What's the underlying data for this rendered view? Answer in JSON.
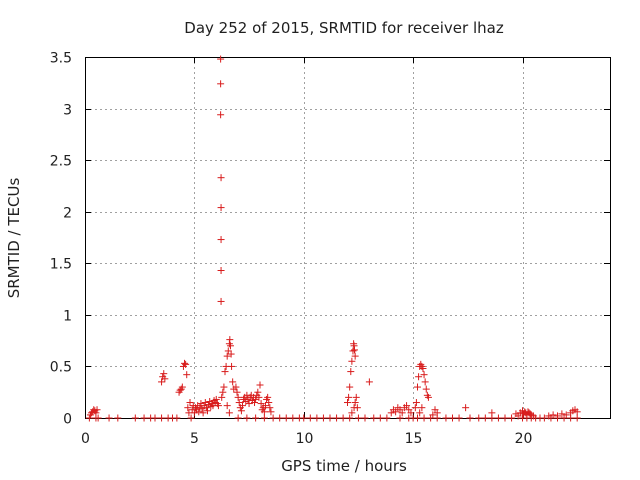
{
  "chart_data": {
    "type": "scatter",
    "title": "Day 252 of 2015, SRMTID for receiver lhaz",
    "xlabel": "GPS time / hours",
    "ylabel": "SRMTID / TECUs",
    "xlim": [
      0,
      24
    ],
    "ylim": [
      0,
      3.5
    ],
    "xticks": [
      0,
      5,
      10,
      15,
      20
    ],
    "xtick_labels": [
      "0",
      "5",
      "10",
      "15",
      "20"
    ],
    "yticks": [
      0,
      0.5,
      1,
      1.5,
      2,
      2.5,
      3,
      3.5
    ],
    "ytick_labels": [
      "0",
      "0.5",
      "1",
      "1.5",
      "2",
      "2.5",
      "3",
      "3.5"
    ],
    "grid": true,
    "marker": "+",
    "color": "#d81c1c",
    "series": [
      {
        "name": "lhaz",
        "points": [
          [
            0.2,
            0.0
          ],
          [
            0.25,
            0.03
          ],
          [
            0.3,
            0.05
          ],
          [
            0.35,
            0.06
          ],
          [
            0.4,
            0.08
          ],
          [
            0.45,
            0.07
          ],
          [
            0.5,
            0.05
          ],
          [
            0.55,
            0.08
          ],
          [
            0.6,
            0.0
          ],
          [
            0.5,
            0.0
          ],
          [
            1.1,
            0.0
          ],
          [
            1.5,
            0.0
          ],
          [
            2.3,
            0.0
          ],
          [
            2.7,
            0.0
          ],
          [
            3.0,
            0.0
          ],
          [
            3.2,
            0.0
          ],
          [
            3.5,
            0.35
          ],
          [
            3.55,
            0.4
          ],
          [
            3.6,
            0.43
          ],
          [
            3.65,
            0.38
          ],
          [
            3.5,
            0.0
          ],
          [
            3.8,
            0.0
          ],
          [
            4.0,
            0.0
          ],
          [
            4.2,
            0.0
          ],
          [
            4.3,
            0.25
          ],
          [
            4.35,
            0.27
          ],
          [
            4.4,
            0.28
          ],
          [
            4.45,
            0.3
          ],
          [
            4.5,
            0.5
          ],
          [
            4.55,
            0.53
          ],
          [
            4.6,
            0.52
          ],
          [
            4.65,
            0.42
          ],
          [
            4.7,
            0.1
          ],
          [
            4.75,
            0.05
          ],
          [
            4.8,
            0.15
          ],
          [
            4.85,
            0.0
          ],
          [
            4.9,
            0.08
          ],
          [
            4.95,
            0.12
          ],
          [
            5.0,
            0.05
          ],
          [
            5.05,
            0.1
          ],
          [
            5.1,
            0.08
          ],
          [
            5.15,
            0.12
          ],
          [
            5.2,
            0.06
          ],
          [
            5.25,
            0.1
          ],
          [
            5.3,
            0.14
          ],
          [
            5.35,
            0.09
          ],
          [
            5.4,
            0.05
          ],
          [
            5.45,
            0.12
          ],
          [
            5.5,
            0.15
          ],
          [
            5.55,
            0.1
          ],
          [
            5.6,
            0.07
          ],
          [
            5.65,
            0.13
          ],
          [
            5.7,
            0.16
          ],
          [
            5.75,
            0.11
          ],
          [
            5.8,
            0.14
          ],
          [
            5.85,
            0.12
          ],
          [
            5.9,
            0.17
          ],
          [
            5.95,
            0.15
          ],
          [
            6.0,
            0.18
          ],
          [
            6.05,
            0.14
          ],
          [
            6.1,
            0.12
          ],
          [
            6.2,
            3.48
          ],
          [
            6.2,
            3.24
          ],
          [
            6.2,
            2.94
          ],
          [
            6.22,
            2.33
          ],
          [
            6.22,
            2.04
          ],
          [
            6.22,
            1.73
          ],
          [
            6.22,
            1.43
          ],
          [
            6.22,
            1.13
          ],
          [
            6.25,
            0.2
          ],
          [
            6.3,
            0.25
          ],
          [
            6.35,
            0.3
          ],
          [
            6.4,
            0.45
          ],
          [
            6.45,
            0.5
          ],
          [
            6.5,
            0.6
          ],
          [
            6.55,
            0.65
          ],
          [
            6.6,
            0.72
          ],
          [
            6.62,
            0.76
          ],
          [
            6.65,
            0.7
          ],
          [
            6.68,
            0.62
          ],
          [
            6.7,
            0.5
          ],
          [
            6.75,
            0.35
          ],
          [
            6.8,
            0.28
          ],
          [
            6.5,
            0.12
          ],
          [
            6.6,
            0.05
          ],
          [
            6.9,
            0.3
          ],
          [
            6.95,
            0.25
          ],
          [
            7.0,
            0.2
          ],
          [
            7.05,
            0.15
          ],
          [
            7.1,
            0.1
          ],
          [
            7.15,
            0.07
          ],
          [
            7.2,
            0.12
          ],
          [
            7.25,
            0.18
          ],
          [
            7.3,
            0.2
          ],
          [
            7.35,
            0.16
          ],
          [
            7.4,
            0.22
          ],
          [
            7.45,
            0.18
          ],
          [
            7.5,
            0.14
          ],
          [
            7.55,
            0.2
          ],
          [
            7.6,
            0.22
          ],
          [
            7.65,
            0.17
          ],
          [
            7.7,
            0.2
          ],
          [
            7.75,
            0.15
          ],
          [
            7.8,
            0.18
          ],
          [
            7.85,
            0.22
          ],
          [
            7.9,
            0.25
          ],
          [
            7.95,
            0.2
          ],
          [
            8.0,
            0.32
          ],
          [
            8.05,
            0.14
          ],
          [
            8.1,
            0.08
          ],
          [
            8.15,
            0.1
          ],
          [
            8.2,
            0.06
          ],
          [
            8.25,
            0.12
          ],
          [
            8.3,
            0.18
          ],
          [
            8.35,
            0.2
          ],
          [
            8.4,
            0.15
          ],
          [
            8.45,
            0.1
          ],
          [
            8.5,
            0.06
          ],
          [
            7.0,
            0.0
          ],
          [
            7.4,
            0.0
          ],
          [
            7.8,
            0.0
          ],
          [
            8.2,
            0.0
          ],
          [
            8.6,
            0.0
          ],
          [
            8.9,
            0.0
          ],
          [
            9.2,
            0.0
          ],
          [
            9.5,
            0.0
          ],
          [
            9.8,
            0.0
          ],
          [
            10.0,
            0.0
          ],
          [
            10.3,
            0.0
          ],
          [
            10.6,
            0.0
          ],
          [
            10.9,
            0.0
          ],
          [
            11.2,
            0.0
          ],
          [
            11.5,
            0.0
          ],
          [
            11.8,
            0.0
          ],
          [
            12.0,
            0.15
          ],
          [
            12.05,
            0.2
          ],
          [
            12.1,
            0.3
          ],
          [
            12.15,
            0.45
          ],
          [
            12.2,
            0.55
          ],
          [
            12.25,
            0.65
          ],
          [
            12.28,
            0.72
          ],
          [
            12.3,
            0.7
          ],
          [
            12.32,
            0.66
          ],
          [
            12.35,
            0.6
          ],
          [
            12.1,
            0.0
          ],
          [
            12.2,
            0.05
          ],
          [
            12.3,
            0.1
          ],
          [
            12.35,
            0.15
          ],
          [
            12.4,
            0.2
          ],
          [
            12.45,
            0.1
          ],
          [
            12.5,
            0.0
          ],
          [
            13.0,
            0.35
          ],
          [
            12.8,
            0.0
          ],
          [
            13.2,
            0.0
          ],
          [
            13.5,
            0.0
          ],
          [
            13.8,
            0.0
          ],
          [
            14.0,
            0.05
          ],
          [
            14.1,
            0.08
          ],
          [
            14.2,
            0.06
          ],
          [
            14.3,
            0.1
          ],
          [
            14.4,
            0.08
          ],
          [
            14.5,
            0.05
          ],
          [
            14.6,
            0.1
          ],
          [
            14.7,
            0.12
          ],
          [
            14.8,
            0.08
          ],
          [
            14.9,
            0.05
          ],
          [
            15.0,
            0.0
          ],
          [
            14.4,
            0.0
          ],
          [
            14.8,
            0.0
          ],
          [
            15.1,
            0.1
          ],
          [
            15.15,
            0.15
          ],
          [
            15.2,
            0.3
          ],
          [
            15.25,
            0.4
          ],
          [
            15.3,
            0.5
          ],
          [
            15.35,
            0.52
          ],
          [
            15.4,
            0.5
          ],
          [
            15.45,
            0.48
          ],
          [
            15.5,
            0.42
          ],
          [
            15.55,
            0.35
          ],
          [
            15.6,
            0.28
          ],
          [
            15.65,
            0.22
          ],
          [
            15.7,
            0.2
          ],
          [
            15.2,
            0.0
          ],
          [
            15.3,
            0.05
          ],
          [
            15.4,
            0.1
          ],
          [
            15.5,
            0.0
          ],
          [
            15.9,
            0.03
          ],
          [
            16.0,
            0.08
          ],
          [
            16.1,
            0.05
          ],
          [
            15.8,
            0.0
          ],
          [
            16.1,
            0.0
          ],
          [
            16.5,
            0.0
          ],
          [
            16.8,
            0.0
          ],
          [
            17.1,
            0.0
          ],
          [
            17.4,
            0.1
          ],
          [
            17.6,
            0.0
          ],
          [
            18.0,
            0.0
          ],
          [
            18.3,
            0.0
          ],
          [
            18.6,
            0.05
          ],
          [
            18.6,
            0.0
          ],
          [
            18.9,
            0.0
          ],
          [
            19.2,
            0.0
          ],
          [
            19.5,
            0.0
          ],
          [
            19.7,
            0.04
          ],
          [
            19.8,
            0.02
          ],
          [
            19.9,
            0.05
          ],
          [
            20.0,
            0.07
          ],
          [
            20.05,
            0.04
          ],
          [
            20.1,
            0.06
          ],
          [
            20.15,
            0.05
          ],
          [
            20.2,
            0.03
          ],
          [
            20.25,
            0.06
          ],
          [
            20.3,
            0.05
          ],
          [
            20.35,
            0.04
          ],
          [
            20.4,
            0.03
          ],
          [
            20.5,
            0.02
          ],
          [
            20.6,
            0.0
          ],
          [
            20.0,
            0.0
          ],
          [
            20.2,
            0.0
          ],
          [
            20.4,
            0.0
          ],
          [
            20.8,
            0.0
          ],
          [
            21.2,
            0.02
          ],
          [
            21.4,
            0.03
          ],
          [
            21.6,
            0.02
          ],
          [
            21.8,
            0.04
          ],
          [
            22.0,
            0.03
          ],
          [
            22.2,
            0.05
          ],
          [
            22.3,
            0.07
          ],
          [
            22.4,
            0.08
          ],
          [
            22.5,
            0.06
          ],
          [
            21.0,
            0.0
          ],
          [
            21.3,
            0.0
          ],
          [
            21.6,
            0.0
          ],
          [
            21.9,
            0.0
          ],
          [
            22.2,
            0.0
          ],
          [
            22.5,
            0.0
          ]
        ]
      }
    ]
  }
}
